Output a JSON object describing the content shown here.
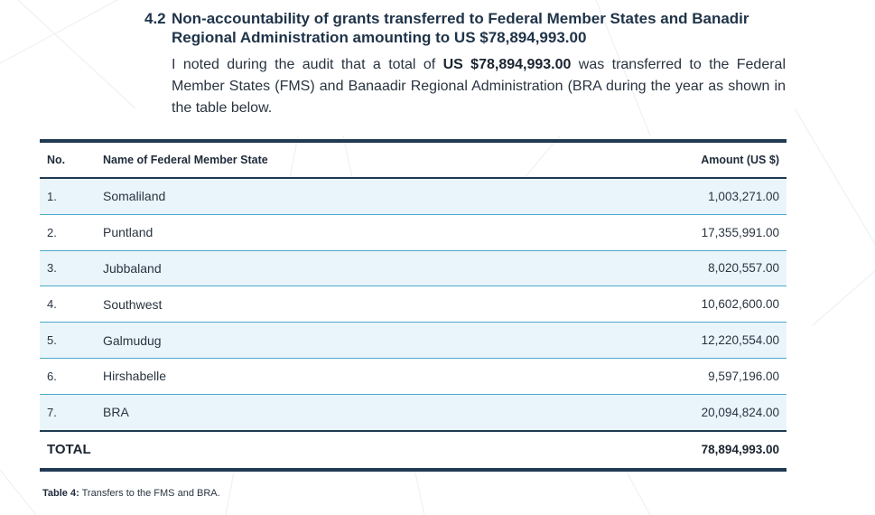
{
  "heading": {
    "number": "4.2",
    "title": "Non-accountability of grants transferred to Federal Member States and Banadir Regional Administration amounting to US $78,894,993.00"
  },
  "intro": {
    "before": "I noted during the audit that a total of ",
    "amount": "US $78,894,993.00",
    "after": " was transferred to the Federal Member States (FMS) and Banaadir Regional Administration (BRA during the year as shown in the table below."
  },
  "table": {
    "headers": {
      "no": "No.",
      "name": "Name of Federal Member State",
      "amount": "Amount (US $)"
    },
    "rows": [
      {
        "no": "1.",
        "name": "Somaliland",
        "amount": "1,003,271.00"
      },
      {
        "no": "2.",
        "name": "Puntland",
        "amount": "17,355,991.00"
      },
      {
        "no": "3.",
        "name": "Jubbaland",
        "amount": "8,020,557.00"
      },
      {
        "no": "4.",
        "name": "Southwest",
        "amount": "10,602,600.00"
      },
      {
        "no": "5.",
        "name": "Galmudug",
        "amount": "12,220,554.00"
      },
      {
        "no": "6.",
        "name": "Hirshabelle",
        "amount": "9,597,196.00"
      },
      {
        "no": "7.",
        "name": "BRA",
        "amount": "20,094,824.00"
      }
    ],
    "total": {
      "label": "TOTAL",
      "amount": "78,894,993.00"
    }
  },
  "caption": {
    "label": "Table 4:",
    "text": " Transfers to the FMS and BRA."
  },
  "colors": {
    "heading": "#1f3348",
    "table_rule": "#1f3a52",
    "row_divider": "#4aa9c9",
    "row_shade": "#e9f5fb"
  }
}
